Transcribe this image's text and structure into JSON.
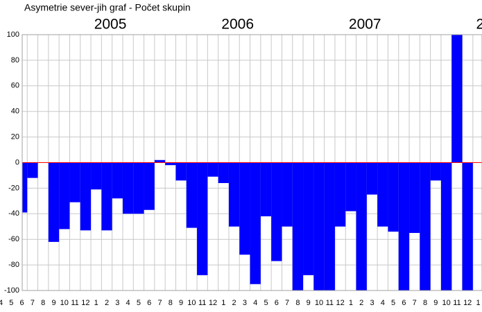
{
  "chart_data": {
    "type": "bar",
    "title": "Asymetrie  sever-jih  graf  -  Počet skupin",
    "year_labels": [
      "2005",
      "2006",
      "2007",
      "2"
    ],
    "categories": [
      "4",
      "5",
      "6",
      "7",
      "8",
      "9",
      "10",
      "11",
      "12",
      "1",
      "2",
      "3",
      "4",
      "5",
      "6",
      "7",
      "8",
      "9",
      "10",
      "11",
      "12",
      "1",
      "2",
      "3",
      "4",
      "5",
      "6",
      "7",
      "8",
      "9",
      "10",
      "11",
      "12",
      "1",
      "2",
      "3",
      "4",
      "5",
      "6",
      "7",
      "8",
      "9",
      "10",
      "11",
      "12",
      "1"
    ],
    "values": [
      null,
      null,
      -39,
      -12,
      0,
      -62,
      -52,
      -31,
      -53,
      -21,
      -53,
      -28,
      -40,
      -40,
      -37,
      2,
      -2,
      -14,
      -51,
      -88,
      -11,
      -16,
      -50,
      -72,
      -95,
      -42,
      -77,
      -50,
      -100,
      -88,
      -100,
      -100,
      -50,
      -38,
      -100,
      -25,
      -50,
      -54,
      -100,
      -55,
      -100,
      -14,
      -100,
      100,
      -100,
      null
    ],
    "color": "#0000ff",
    "zero_line_color": "#ff0000",
    "ylim": [
      -100,
      100
    ],
    "yticks": [
      100,
      80,
      60,
      40,
      20,
      0,
      -20,
      -40,
      -60,
      -80,
      -100
    ],
    "grid": true
  }
}
